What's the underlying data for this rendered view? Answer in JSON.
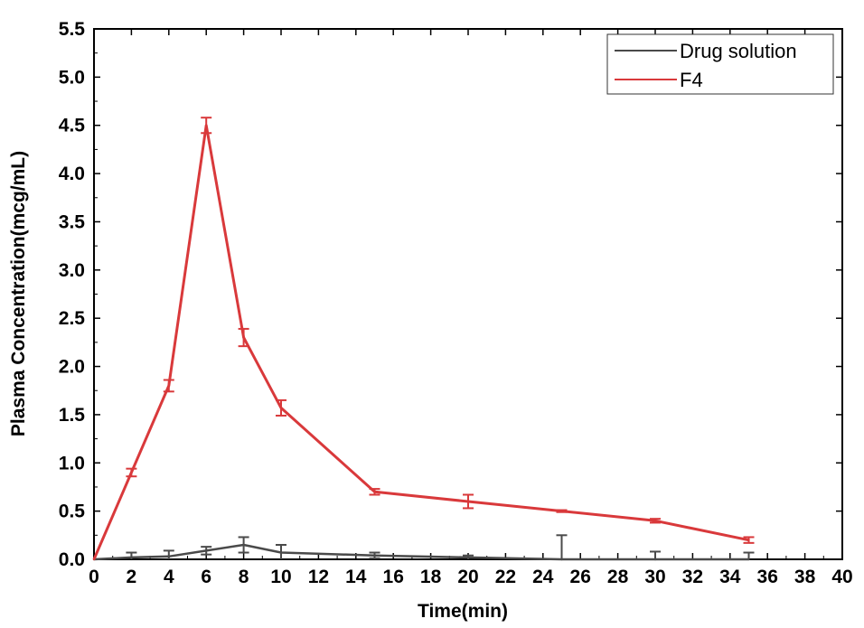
{
  "chart_data": {
    "type": "line",
    "xlabel": "Time(min)",
    "ylabel": "Plasma Concentration(mcg/mL)",
    "xlim": [
      0,
      40
    ],
    "ylim": [
      0,
      5.5
    ],
    "xticks": [
      "0",
      "2",
      "4",
      "6",
      "8",
      "10",
      "12",
      "14",
      "16",
      "18",
      "20",
      "22",
      "24",
      "26",
      "28",
      "30",
      "32",
      "34",
      "36",
      "38",
      "40"
    ],
    "yticks": [
      "0.0",
      "0.5",
      "1.0",
      "1.5",
      "2.0",
      "2.5",
      "3.0",
      "3.5",
      "4.0",
      "4.5",
      "5.0",
      "5.5"
    ],
    "legend_position": "top-right",
    "grid": false,
    "series": [
      {
        "name": "Drug solution",
        "color": "#4a4a4a",
        "x": [
          0,
          2,
          4,
          6,
          8,
          10,
          15,
          20,
          25,
          30,
          35
        ],
        "y": [
          0,
          0.02,
          0.03,
          0.09,
          0.15,
          0.07,
          0.04,
          0.02,
          0.0,
          0.0,
          0.0
        ],
        "err": [
          0,
          0.05,
          0.06,
          0.04,
          0.08,
          0.08,
          0.03,
          0.02,
          0.25,
          0.08,
          0.07
        ]
      },
      {
        "name": "F4",
        "color": "#d9393b",
        "x": [
          0,
          2,
          4,
          6,
          8,
          10,
          15,
          20,
          25,
          30,
          35
        ],
        "y": [
          0,
          0.9,
          1.8,
          4.5,
          2.3,
          1.57,
          0.7,
          0.6,
          0.5,
          0.4,
          0.2
        ],
        "err": [
          0,
          0.04,
          0.06,
          0.08,
          0.09,
          0.08,
          0.03,
          0.07,
          0.01,
          0.02,
          0.03
        ]
      }
    ]
  }
}
